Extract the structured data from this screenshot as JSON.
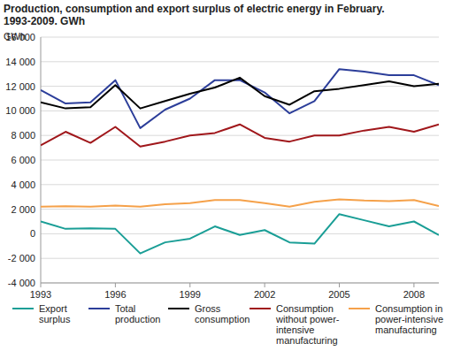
{
  "chart_data": {
    "type": "line",
    "title": "Production, consumption and export surplus of electric energy in February.",
    "subtitle": "1993-2009. GWh",
    "y_label": "GWh",
    "x": [
      1993,
      1994,
      1995,
      1996,
      1997,
      1998,
      1999,
      2000,
      2001,
      2002,
      2003,
      2004,
      2005,
      2006,
      2007,
      2008,
      2009
    ],
    "xlim": [
      1993,
      2009
    ],
    "xticks": [
      1993,
      1996,
      1999,
      2002,
      2005,
      2008
    ],
    "ylim": [
      -4000,
      16000
    ],
    "yticks": [
      {
        "value": -4000,
        "label": "-4 000"
      },
      {
        "value": -2000,
        "label": "-2 000"
      },
      0,
      {
        "value": 2000,
        "label": "2 000"
      },
      {
        "value": 4000,
        "label": "4 000"
      },
      {
        "value": 6000,
        "label": "6 000"
      },
      {
        "value": 8000,
        "label": "8 000"
      },
      {
        "value": 10000,
        "label": "10 000"
      },
      {
        "value": 12000,
        "label": "12 000"
      },
      {
        "value": 14000,
        "label": "14 000"
      },
      {
        "value": 16000,
        "label": "16 000"
      }
    ],
    "grid": true,
    "legend": "bottom",
    "series": [
      {
        "name": "Export surplus",
        "color": "#1a9e96",
        "values": [
          1000,
          400,
          450,
          400,
          -1600,
          -700,
          -400,
          600,
          -100,
          300,
          -700,
          -800,
          1600,
          1100,
          600,
          1000,
          -100
        ]
      },
      {
        "name": "Total production",
        "color": "#2c3e9a",
        "values": [
          11700,
          10600,
          10700,
          12500,
          8600,
          10100,
          11000,
          12500,
          12500,
          11500,
          9800,
          10800,
          13400,
          13200,
          12900,
          12900,
          12100
        ]
      },
      {
        "name": "Gross consumption",
        "color": "#000000",
        "values": [
          10700,
          10200,
          10300,
          12100,
          10200,
          10800,
          11400,
          11900,
          12700,
          11200,
          10500,
          11600,
          11800,
          12100,
          12400,
          12000,
          12200
        ]
      },
      {
        "name": "Consumption without power-intensive manufacturing",
        "color": "#a0171b",
        "values": [
          7200,
          8300,
          7400,
          8700,
          7100,
          7500,
          8000,
          8200,
          8900,
          7800,
          7500,
          8000,
          8000,
          8400,
          8700,
          8300,
          8900
        ]
      },
      {
        "name": "Consumption in power-intensive manufacturing",
        "color": "#f5a14a",
        "values": [
          2200,
          2250,
          2200,
          2300,
          2200,
          2400,
          2500,
          2750,
          2750,
          2500,
          2200,
          2600,
          2800,
          2700,
          2650,
          2750,
          2250
        ]
      }
    ]
  }
}
